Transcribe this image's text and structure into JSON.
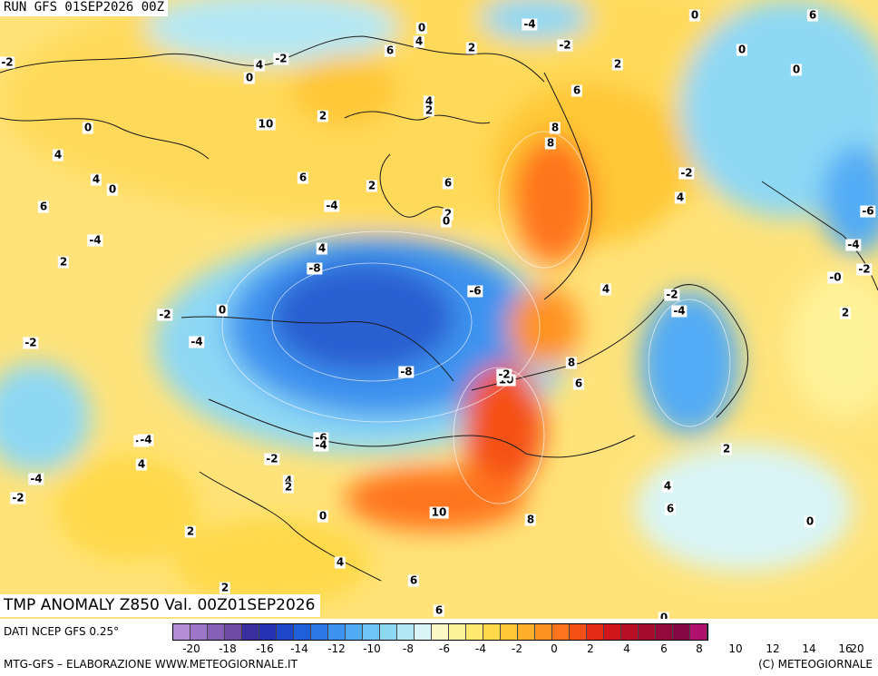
{
  "header": {
    "run_label": "RUN GFS 01SEP2026 00Z"
  },
  "title": {
    "text": "TMP ANOMALY Z850 Val. 00Z01SEP2026"
  },
  "footer": {
    "data_source": "DATI NCEP GFS 0.25°",
    "credits": "MTG-GFS – ELABORAZIONE WWW.METEOGIORNALE.IT",
    "copyright": "(C) METEOGIORNALE"
  },
  "colorbar": {
    "colors": [
      "#b58dd6",
      "#9d76c9",
      "#8660b6",
      "#6e4aa3",
      "#3a2f9e",
      "#2532b3",
      "#1c48c9",
      "#1f5fd8",
      "#2b78e6",
      "#3d93ef",
      "#52acf5",
      "#6cc4f7",
      "#8dd8f5",
      "#b3e8f5",
      "#d9f5f8",
      "#fbf8c6",
      "#fff39a",
      "#ffe96e",
      "#ffd94a",
      "#ffc736",
      "#ffb02a",
      "#ff9322",
      "#ff741c",
      "#f55117",
      "#e52a15",
      "#d0151b",
      "#b80f26",
      "#a50c30",
      "#930a3a",
      "#840841",
      "#b0106e"
    ],
    "tick_labels": [
      "-20",
      "-18",
      "-16",
      "-14",
      "-12",
      "-10",
      "-8",
      "-6",
      "-4",
      "-2",
      "0",
      "2",
      "4",
      "6",
      "8",
      "10",
      "12",
      "14",
      "16",
      "20"
    ]
  },
  "contour_labels": [
    "-4",
    "0",
    "6",
    "-2",
    "0",
    "4",
    "2",
    "6",
    "2",
    "0",
    "-2",
    "4",
    "0",
    "-2",
    "0",
    "6",
    "4",
    "2",
    "8",
    "2",
    "0",
    "8",
    "10",
    "4",
    "4",
    "0",
    "2",
    "6",
    "-2",
    "4",
    "6",
    "-4",
    "6",
    "2",
    "0",
    "-4",
    "-6",
    "4",
    "-4",
    "-8",
    "2",
    "-6",
    "-2",
    "-0",
    "-2",
    "4",
    "-2",
    "2",
    "0",
    "-4",
    "-8",
    "-4",
    "-2",
    "-4",
    "10",
    "8",
    "6",
    "-2",
    "-4",
    "-6",
    "-4",
    "-2",
    "2",
    "4",
    "-4",
    "-2",
    "2",
    "4",
    "4",
    "6",
    "10",
    "8",
    "0",
    "2",
    "0",
    "4",
    "6",
    "2",
    "6",
    "0"
  ]
}
